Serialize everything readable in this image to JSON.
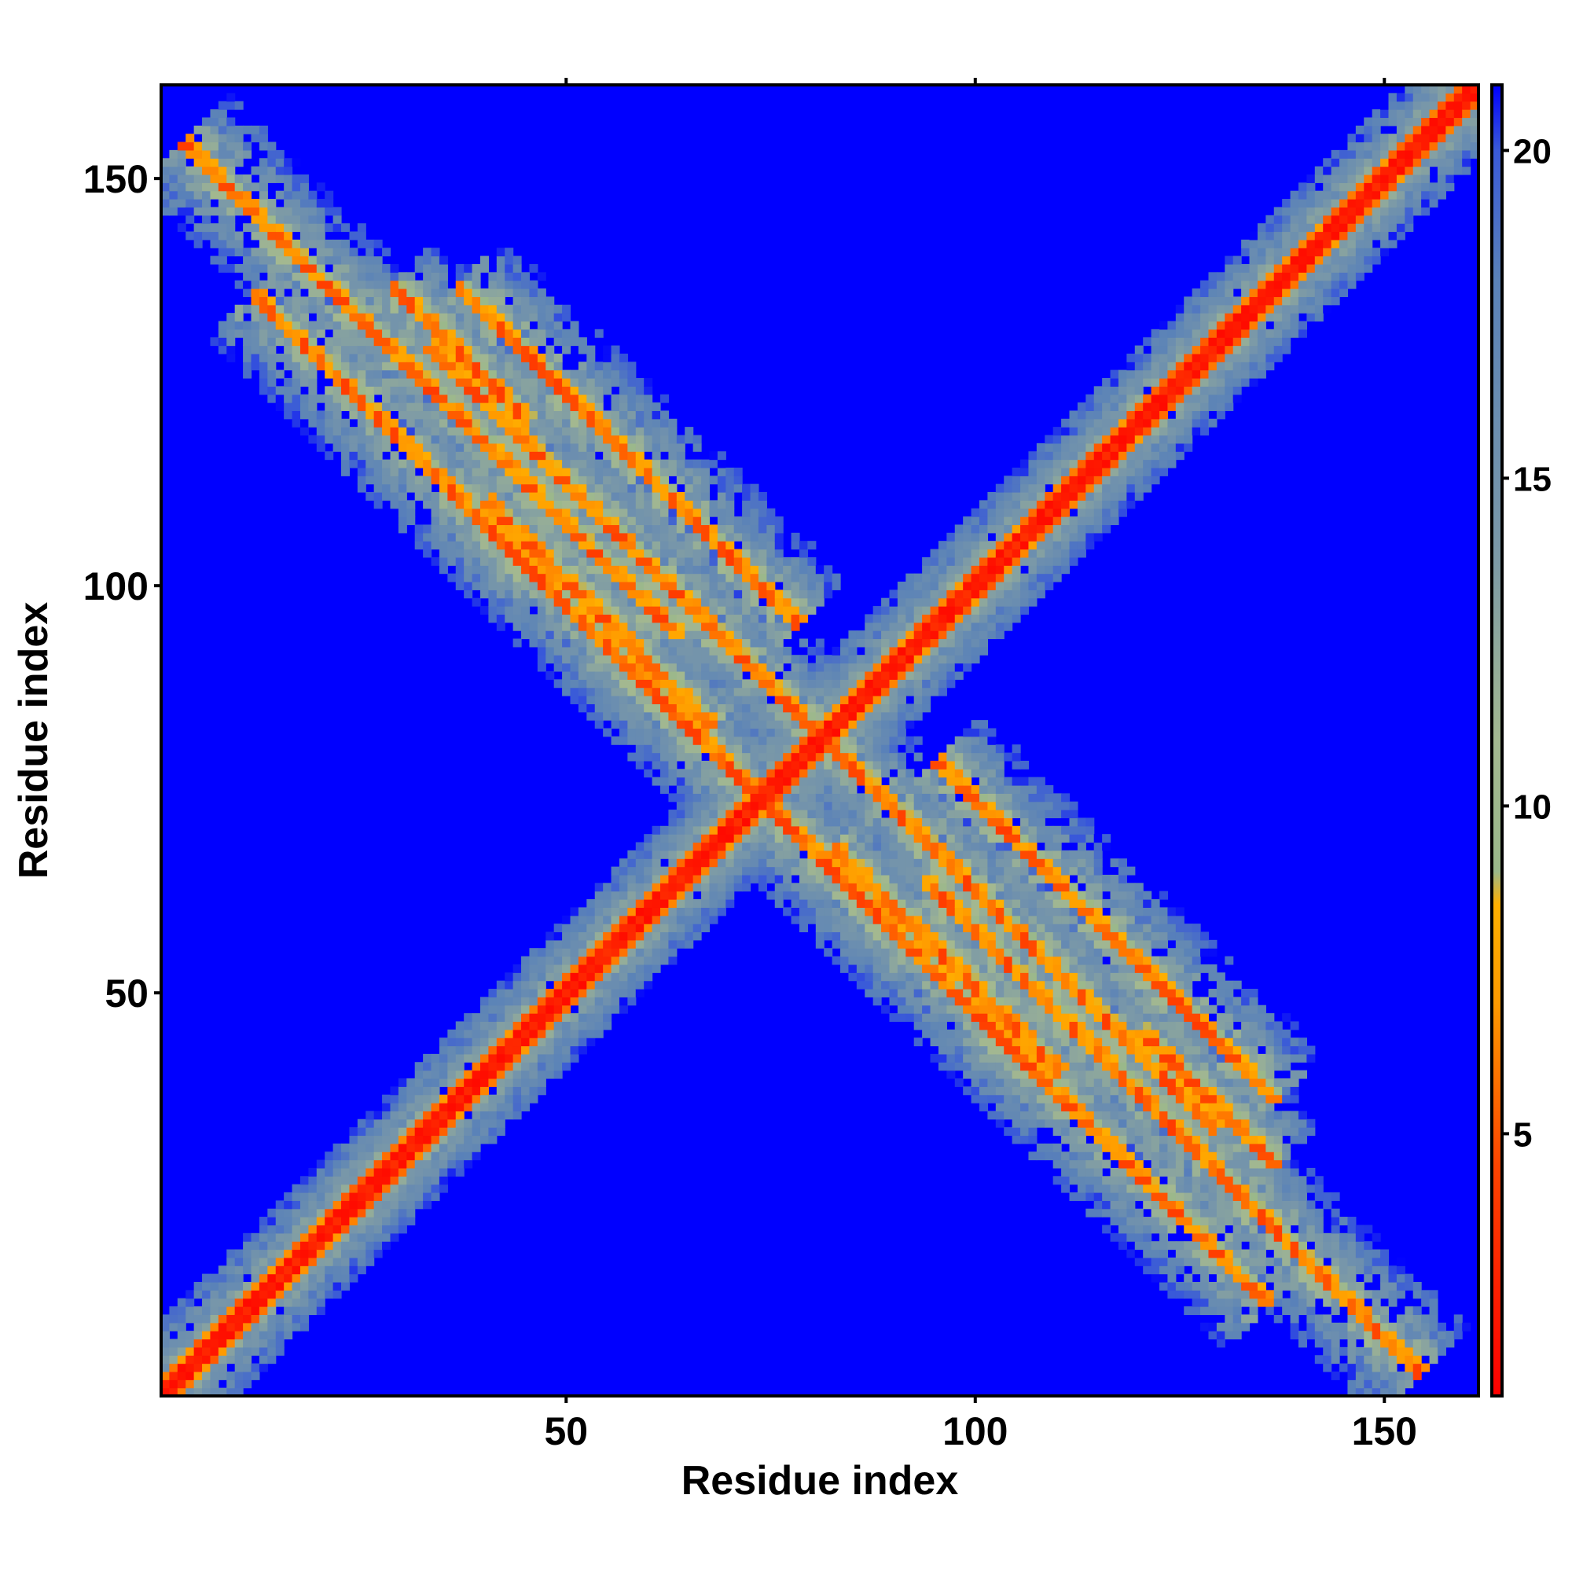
{
  "chart_data": {
    "type": "heatmap",
    "description_kind": "residue contact / distance map",
    "xlabel": "Residue index",
    "ylabel": "Residue index",
    "n_residues": 161,
    "xlim": [
      1,
      161
    ],
    "ylim": [
      1,
      161
    ],
    "x_ticks": [
      50,
      100,
      150
    ],
    "y_ticks": [
      50,
      100,
      150
    ],
    "colorbar": {
      "range": [
        1,
        21
      ],
      "ticks": [
        5,
        10,
        15,
        20
      ],
      "stops": [
        {
          "value": 1,
          "color": "#ff0000"
        },
        {
          "value": 4.5,
          "color": "#ff4400"
        },
        {
          "value": 7,
          "color": "#ff9a00"
        },
        {
          "value": 8.5,
          "color": "#ffb000"
        },
        {
          "value": 9,
          "color": "#9ab88a"
        },
        {
          "value": 11,
          "color": "#a3b890"
        },
        {
          "value": 14,
          "color": "#7a98a8"
        },
        {
          "value": 18,
          "color": "#5a82b8"
        },
        {
          "value": 20,
          "color": "#3a5ad8"
        },
        {
          "value": 21,
          "color": "#0000ff"
        }
      ]
    },
    "background_value": 21,
    "background_color": "#0000ff",
    "features": [
      {
        "kind": "diagonal",
        "note": "main diagonal, residue i vs i"
      },
      {
        "kind": "antidiagonal_band",
        "sum": 157,
        "from_x": 3,
        "to_x": 63
      },
      {
        "kind": "antidiagonal_band",
        "sum": 162,
        "from_x": 33,
        "to_x": 80
      },
      {
        "kind": "antidiagonal_band",
        "sum": 150,
        "from_x": 40,
        "to_x": 67
      },
      {
        "kind": "antidiagonal_band",
        "sum": 147,
        "from_x": 55,
        "to_x": 110
      },
      {
        "kind": "antidiagonal_band",
        "sum": 147,
        "from_x": 100,
        "to_x": 135
      },
      {
        "kind": "antidiagonal_band",
        "sum": 173,
        "from_x": 95,
        "to_x": 136
      },
      {
        "kind": "antidiagonal_band",
        "sum": 165,
        "from_x": 120,
        "to_x": 136
      }
    ]
  }
}
